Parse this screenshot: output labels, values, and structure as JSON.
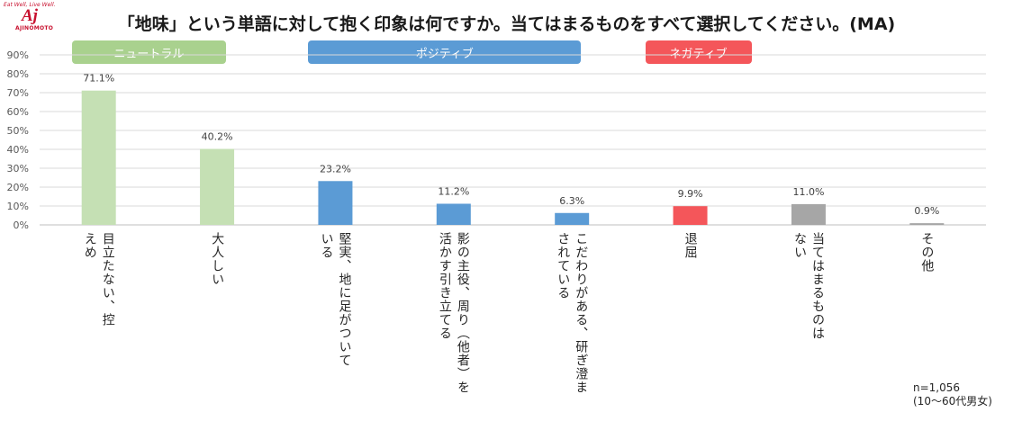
{
  "logo": {
    "tagline": "Eat Well, Live Well.",
    "mark": "Aj",
    "brand": "AJINOMOTO"
  },
  "chart_data": {
    "type": "bar",
    "title": "「地味」という単語に対して抱く印象は何ですか。当てはまるものをすべて選択してください。(MA)",
    "categories": [
      "目立たない、控えめ",
      "大人しい",
      "堅実、地に足がついている",
      "影の主役、周り（他者）を活かす引き立てる",
      "こだわりがある、研ぎ澄まされている",
      "退屈",
      "当てはまるものはない",
      "その他"
    ],
    "values": [
      71.1,
      40.2,
      23.2,
      11.2,
      6.3,
      9.9,
      11.0,
      0.9
    ],
    "value_labels": [
      "71.1%",
      "40.2%",
      "23.2%",
      "11.2%",
      "6.3%",
      "9.9%",
      "11.0%",
      "0.9%"
    ],
    "groups": [
      "neutral",
      "neutral",
      "positive",
      "positive",
      "positive",
      "negative",
      "other",
      "other"
    ],
    "group_legend": [
      {
        "key": "neutral",
        "label": "ニュートラル",
        "color": "#a9d18e"
      },
      {
        "key": "positive",
        "label": "ポジティブ",
        "color": "#5b9bd5"
      },
      {
        "key": "negative",
        "label": "ネガティブ",
        "color": "#f4565a"
      }
    ],
    "bar_colors": {
      "neutral": "#c5e0b4",
      "positive": "#5b9bd5",
      "negative": "#f4565a",
      "other": "#a6a6a6"
    },
    "y_ticks": [
      "0%",
      "10%",
      "20%",
      "30%",
      "40%",
      "50%",
      "60%",
      "70%",
      "80%",
      "90%"
    ],
    "ylim": [
      0,
      90
    ],
    "grid": true,
    "xlabel": "",
    "ylabel": ""
  },
  "note": {
    "n": "n=1,056",
    "sample": "(10～60代男女)"
  }
}
